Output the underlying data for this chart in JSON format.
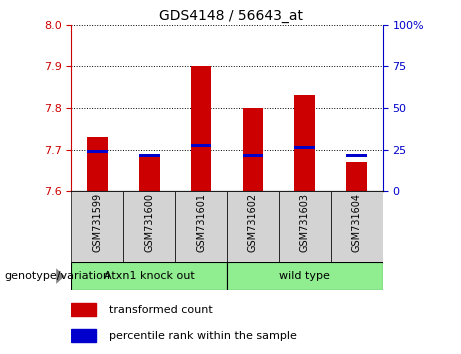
{
  "title": "GDS4148 / 56643_at",
  "samples": [
    "GSM731599",
    "GSM731600",
    "GSM731601",
    "GSM731602",
    "GSM731603",
    "GSM731604"
  ],
  "red_values": [
    7.73,
    7.69,
    7.9,
    7.8,
    7.83,
    7.67
  ],
  "blue_values": [
    7.695,
    7.685,
    7.71,
    7.685,
    7.705,
    7.685
  ],
  "ylim_left": [
    7.6,
    8.0
  ],
  "ylim_right": [
    0,
    100
  ],
  "yticks_left": [
    7.6,
    7.7,
    7.8,
    7.9,
    8.0
  ],
  "yticks_right": [
    0,
    25,
    50,
    75,
    100
  ],
  "left_tick_color": "#cc0000",
  "right_tick_color": "#0000cc",
  "bar_bottom": 7.6,
  "bar_color": "#cc0000",
  "blue_color": "#0000cc",
  "group1_label": "Atxn1 knock out",
  "group2_label": "wild type",
  "group_color": "#90ee90",
  "cell_color": "#d3d3d3",
  "xlabel_left": "genotype/variation",
  "legend_red": "transformed count",
  "legend_blue": "percentile rank within the sample"
}
